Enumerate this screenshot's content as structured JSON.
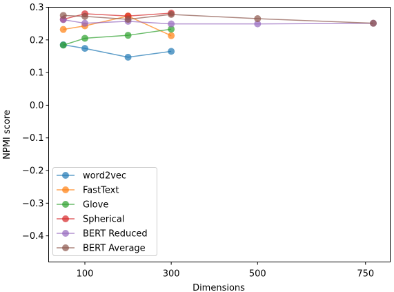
{
  "chart_data": {
    "type": "line",
    "xlabel": "Dimensions",
    "ylabel": "NPMI score",
    "xlim": [
      0,
      800
    ],
    "ylim": [
      -0.48,
      0.3
    ],
    "x_ticks": [
      100,
      300,
      500,
      750
    ],
    "y_ticks": [
      0.3,
      0.2,
      0.1,
      0.0,
      -0.1,
      -0.2,
      -0.3,
      -0.4
    ],
    "y_tick_labels": [
      "0.3",
      "0.2",
      "0.1",
      "0.0",
      "−0.1",
      "−0.2",
      "−0.3",
      "−0.4"
    ],
    "legend_position": "lower-left",
    "grid": false,
    "series": [
      {
        "name": "word2vec",
        "color": "#1f77b4",
        "x": [
          50,
          100,
          200,
          300
        ],
        "y": [
          0.185,
          0.174,
          0.147,
          0.165
        ]
      },
      {
        "name": "FastText",
        "color": "#ff7f0e",
        "x": [
          50,
          100,
          200,
          300
        ],
        "y": [
          0.232,
          0.243,
          0.273,
          0.213
        ]
      },
      {
        "name": "Glove",
        "color": "#2ca02c",
        "x": [
          50,
          100,
          200,
          300
        ],
        "y": [
          0.184,
          0.205,
          0.214,
          0.233
        ]
      },
      {
        "name": "Spherical",
        "color": "#d62728",
        "x": [
          50,
          100,
          200,
          300
        ],
        "y": [
          0.263,
          0.28,
          0.273,
          0.282
        ]
      },
      {
        "name": "BERT Reduced",
        "color": "#9467bd",
        "x": [
          50,
          100,
          200,
          300,
          500,
          768
        ],
        "y": [
          0.262,
          0.251,
          0.257,
          0.249,
          0.249,
          0.251
        ]
      },
      {
        "name": "BERT Average",
        "color": "#8c564b",
        "x": [
          50,
          100,
          200,
          300,
          500,
          768
        ],
        "y": [
          0.275,
          0.272,
          0.263,
          0.278,
          0.265,
          0.251
        ]
      }
    ]
  }
}
